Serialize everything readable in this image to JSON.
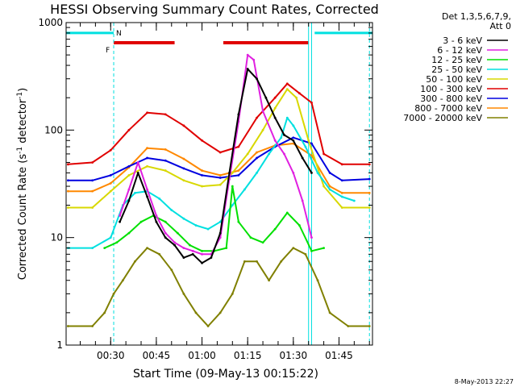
{
  "chart_data": {
    "type": "line",
    "title": "HESSI Observing Summary Count Rates, Corrected",
    "xlabel": "Start Time (09-May-13 00:15:22)",
    "ylabel_main": "Corrected Count Rate (s",
    "ylabel_sup1": "-1",
    "ylabel_mid": " detector",
    "ylabel_sup2": "-1",
    "ylabel_end": ")",
    "y_scale": "log",
    "ylim": [
      1,
      1000
    ],
    "xlim": [
      "00:15:22",
      "01:56:00"
    ],
    "x_ticks": [
      "00:30",
      "00:45",
      "01:00",
      "01:15",
      "01:30",
      "01:45"
    ],
    "y_ticks": [
      "1000",
      "100",
      "10",
      "1"
    ],
    "legend_placement": "right",
    "legend_header": [
      "Det 1,3,5,6,7,9,",
      "Att 0"
    ],
    "timestamp": "8-May-2013 22:27",
    "flag_labels": {
      "F": "F",
      "N": "N"
    },
    "series": [
      {
        "name": "3 - 6 keV",
        "color": "#000000",
        "points": [
          [
            "00:33",
            14
          ],
          [
            "00:36",
            22
          ],
          [
            "00:39",
            40
          ],
          [
            "00:42",
            24
          ],
          [
            "00:45",
            14
          ],
          [
            "00:48",
            10
          ],
          [
            "00:51",
            8.5
          ],
          [
            "00:54",
            6.5
          ],
          [
            "00:57",
            7
          ],
          [
            "01:00",
            5.8
          ],
          [
            "01:03",
            6.5
          ],
          [
            "01:06",
            11
          ],
          [
            "01:09",
            40
          ],
          [
            "01:12",
            140
          ],
          [
            "01:15",
            370
          ],
          [
            "01:18",
            300
          ],
          [
            "01:21",
            200
          ],
          [
            "01:24",
            130
          ],
          [
            "01:27",
            90
          ],
          [
            "01:30",
            80
          ],
          [
            "01:33",
            55
          ],
          [
            "01:36",
            40
          ]
        ]
      },
      {
        "name": "6 - 12 keV",
        "color": "#e020e0",
        "points": [
          [
            "00:33",
            16
          ],
          [
            "00:36",
            28
          ],
          [
            "00:39",
            50
          ],
          [
            "00:42",
            28
          ],
          [
            "00:45",
            16
          ],
          [
            "00:48",
            11
          ],
          [
            "00:51",
            9
          ],
          [
            "00:54",
            8
          ],
          [
            "00:57",
            7.5
          ],
          [
            "01:00",
            7
          ],
          [
            "01:03",
            7
          ],
          [
            "01:06",
            10
          ],
          [
            "01:09",
            35
          ],
          [
            "01:12",
            120
          ],
          [
            "01:15",
            500
          ],
          [
            "01:17",
            450
          ],
          [
            "01:20",
            150
          ],
          [
            "01:24",
            80
          ],
          [
            "01:27",
            60
          ],
          [
            "01:30",
            40
          ],
          [
            "01:33",
            22
          ],
          [
            "01:36",
            10
          ]
        ]
      },
      {
        "name": "12 - 25 keV",
        "color": "#00e000",
        "points": [
          [
            "00:28",
            8
          ],
          [
            "00:32",
            9
          ],
          [
            "00:36",
            11
          ],
          [
            "00:40",
            14
          ],
          [
            "00:44",
            16
          ],
          [
            "00:48",
            14
          ],
          [
            "00:52",
            11
          ],
          [
            "00:56",
            8.5
          ],
          [
            "01:00",
            7.5
          ],
          [
            "01:04",
            7.5
          ],
          [
            "01:08",
            8
          ],
          [
            "01:10",
            30
          ],
          [
            "01:12",
            14
          ],
          [
            "01:16",
            10
          ],
          [
            "01:20",
            9
          ],
          [
            "01:24",
            12
          ],
          [
            "01:28",
            17
          ],
          [
            "01:32",
            13
          ],
          [
            "01:36",
            7.5
          ],
          [
            "01:40",
            8
          ]
        ]
      },
      {
        "name": "25 - 50 keV",
        "color": "#00e0e0",
        "points": [
          [
            "00:16",
            8
          ],
          [
            "00:24",
            8
          ],
          [
            "00:30",
            10
          ],
          [
            "00:34",
            20
          ],
          [
            "00:38",
            26
          ],
          [
            "00:42",
            27
          ],
          [
            "00:46",
            23
          ],
          [
            "00:50",
            18
          ],
          [
            "00:54",
            15
          ],
          [
            "00:58",
            13
          ],
          [
            "01:02",
            12
          ],
          [
            "01:06",
            14
          ],
          [
            "01:10",
            20
          ],
          [
            "01:14",
            28
          ],
          [
            "01:18",
            40
          ],
          [
            "01:22",
            60
          ],
          [
            "01:26",
            85
          ],
          [
            "01:28",
            130
          ],
          [
            "01:30",
            110
          ],
          [
            "01:34",
            70
          ],
          [
            "01:38",
            40
          ],
          [
            "01:42",
            28
          ],
          [
            "01:46",
            24
          ],
          [
            "01:50",
            22
          ]
        ]
      },
      {
        "name": "50 - 100 keV",
        "color": "#d8d800",
        "points": [
          [
            "00:16",
            19
          ],
          [
            "00:24",
            19
          ],
          [
            "00:30",
            27
          ],
          [
            "00:36",
            38
          ],
          [
            "00:42",
            46
          ],
          [
            "00:48",
            42
          ],
          [
            "00:54",
            34
          ],
          [
            "01:00",
            30
          ],
          [
            "01:06",
            31
          ],
          [
            "01:10",
            40
          ],
          [
            "01:15",
            60
          ],
          [
            "01:20",
            100
          ],
          [
            "01:24",
            160
          ],
          [
            "01:28",
            240
          ],
          [
            "01:31",
            200
          ],
          [
            "01:35",
            80
          ],
          [
            "01:40",
            30
          ],
          [
            "01:46",
            19
          ],
          [
            "01:55",
            19
          ]
        ]
      },
      {
        "name": "100 - 300 keV",
        "color": "#e00000",
        "points": [
          [
            "00:16",
            48
          ],
          [
            "00:24",
            50
          ],
          [
            "00:30",
            65
          ],
          [
            "00:36",
            100
          ],
          [
            "00:42",
            145
          ],
          [
            "00:48",
            140
          ],
          [
            "00:54",
            110
          ],
          [
            "01:00",
            80
          ],
          [
            "01:06",
            62
          ],
          [
            "01:12",
            70
          ],
          [
            "01:18",
            130
          ],
          [
            "01:24",
            200
          ],
          [
            "01:28",
            270
          ],
          [
            "01:32",
            220
          ],
          [
            "01:36",
            180
          ],
          [
            "01:40",
            60
          ],
          [
            "01:46",
            48
          ],
          [
            "01:55",
            48
          ]
        ]
      },
      {
        "name": "300 - 800 keV",
        "color": "#0000e0",
        "points": [
          [
            "00:16",
            34
          ],
          [
            "00:24",
            34
          ],
          [
            "00:30",
            38
          ],
          [
            "00:36",
            46
          ],
          [
            "00:42",
            55
          ],
          [
            "00:48",
            52
          ],
          [
            "00:54",
            44
          ],
          [
            "01:00",
            38
          ],
          [
            "01:06",
            36
          ],
          [
            "01:12",
            38
          ],
          [
            "01:18",
            55
          ],
          [
            "01:24",
            70
          ],
          [
            "01:30",
            85
          ],
          [
            "01:36",
            75
          ],
          [
            "01:42",
            40
          ],
          [
            "01:46",
            34
          ],
          [
            "01:55",
            35
          ]
        ]
      },
      {
        "name": "800 - 7000 keV",
        "color": "#ff8800",
        "points": [
          [
            "00:16",
            27
          ],
          [
            "00:24",
            27
          ],
          [
            "00:30",
            32
          ],
          [
            "00:36",
            45
          ],
          [
            "00:42",
            68
          ],
          [
            "00:48",
            66
          ],
          [
            "00:54",
            54
          ],
          [
            "01:00",
            42
          ],
          [
            "01:06",
            38
          ],
          [
            "01:12",
            42
          ],
          [
            "01:18",
            62
          ],
          [
            "01:24",
            72
          ],
          [
            "01:30",
            75
          ],
          [
            "01:36",
            58
          ],
          [
            "01:42",
            30
          ],
          [
            "01:46",
            26
          ],
          [
            "01:55",
            26
          ]
        ]
      },
      {
        "name": "7000 - 20000 keV",
        "color": "#808000",
        "points": [
          [
            "00:16",
            1.5
          ],
          [
            "00:24",
            1.5
          ],
          [
            "00:28",
            2
          ],
          [
            "00:31",
            3
          ],
          [
            "00:34",
            4
          ],
          [
            "00:38",
            6
          ],
          [
            "00:42",
            8
          ],
          [
            "00:46",
            7
          ],
          [
            "00:50",
            5
          ],
          [
            "00:54",
            3
          ],
          [
            "00:58",
            2
          ],
          [
            "01:02",
            1.5
          ],
          [
            "01:06",
            2
          ],
          [
            "01:10",
            3
          ],
          [
            "01:14",
            6
          ],
          [
            "01:18",
            6
          ],
          [
            "01:22",
            4
          ],
          [
            "01:26",
            6
          ],
          [
            "01:30",
            8
          ],
          [
            "01:34",
            7
          ],
          [
            "01:38",
            4
          ],
          [
            "01:42",
            2
          ],
          [
            "01:48",
            1.5
          ],
          [
            "01:55",
            1.5
          ]
        ]
      }
    ],
    "annotation_bars": [
      {
        "kind": "cyan",
        "from": "00:15:22",
        "to": "00:31",
        "value": 800
      },
      {
        "kind": "cyan",
        "from": "01:37",
        "to": "01:56",
        "value": 800
      },
      {
        "kind": "red",
        "from": "00:31",
        "to": "00:51",
        "value": 650
      },
      {
        "kind": "red",
        "from": "01:07",
        "to": "01:35",
        "value": 650
      }
    ],
    "vertical_lines": [
      {
        "at": "00:31",
        "style": "dashed"
      },
      {
        "at": "01:35",
        "style": "solid"
      },
      {
        "at": "01:36",
        "style": "solid"
      },
      {
        "at": "01:55",
        "style": "dashed"
      }
    ]
  }
}
